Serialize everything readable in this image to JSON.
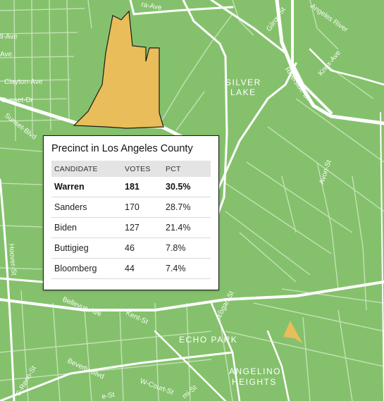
{
  "colors": {
    "background": "#85c16c",
    "road": "#ffffff",
    "precinct_fill": "#e8bd5a",
    "precinct_stroke": "#1a1a1a"
  },
  "map": {
    "street_labels": {
      "aurora_ave": "ra-Ave",
      "gilroy_st": "Gilroy-St",
      "angeles_river": "Angeles River",
      "ell_ave": "ll-Ave",
      "ave": "Ave",
      "clayton_ave": "Clayton-Ave",
      "sunset_dr": "Sunset-Dr",
      "sunset_blvd": "Sunset-Blvd",
      "riverside_dr": "Riverside-Dr",
      "knox_ave": "Knox-Ave",
      "avon_st": "Avon-St",
      "hoover_st": "Hoover-St",
      "bellevue_ave": "Bellevue-Ave",
      "kent_st": "Kent-St",
      "logan_st": "Logan-St",
      "beverly_blvd": "Beverly-Blvd",
      "w_court_st": "W-Court-St",
      "s_reno_st": "S-Reno-St",
      "e_st": "e-St",
      "mi_st": "mi-St"
    },
    "neighborhoods": {
      "silver_lake_1": "SILVER",
      "silver_lake_2": "LAKE",
      "echo_park": "ECHO PARK",
      "angelino_1": "ANGELINO",
      "angelino_2": "HEIGHTS"
    }
  },
  "popup": {
    "title": "Precinct in Los Angeles County",
    "headers": {
      "candidate": "CANDIDATE",
      "votes": "VOTES",
      "pct": "PCT"
    },
    "rows": [
      {
        "candidate": "Warren",
        "votes": "181",
        "pct": "30.5%"
      },
      {
        "candidate": "Sanders",
        "votes": "170",
        "pct": "28.7%"
      },
      {
        "candidate": "Biden",
        "votes": "127",
        "pct": "21.4%"
      },
      {
        "candidate": "Buttigieg",
        "votes": "46",
        "pct": "7.8%"
      },
      {
        "candidate": "Bloomberg",
        "votes": "44",
        "pct": "7.4%"
      }
    ]
  }
}
